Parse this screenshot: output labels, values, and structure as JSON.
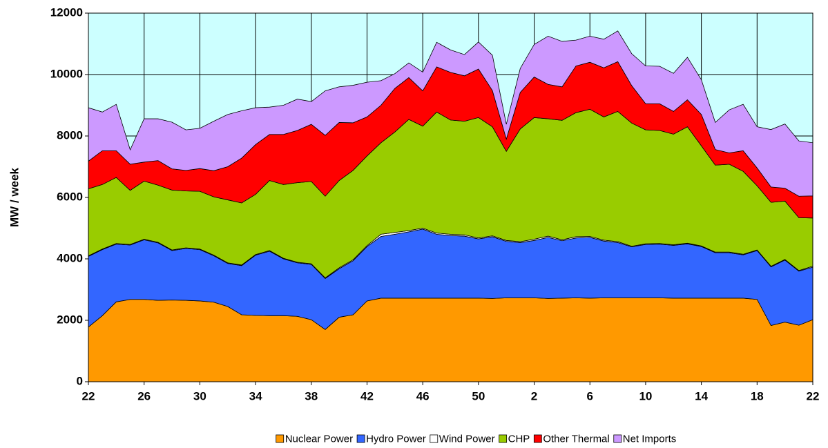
{
  "chart_data": {
    "type": "stacked_area",
    "y_label": "MW / week",
    "categories": [
      "22",
      null,
      null,
      null,
      "26",
      null,
      null,
      null,
      "30",
      null,
      null,
      null,
      "34",
      null,
      null,
      null,
      "38",
      null,
      null,
      null,
      "42",
      null,
      null,
      null,
      "46",
      null,
      null,
      null,
      "50",
      null,
      null,
      null,
      "2",
      null,
      null,
      null,
      "6",
      null,
      null,
      null,
      "10",
      null,
      null,
      null,
      "14",
      null,
      null,
      null,
      "18",
      null,
      null,
      null,
      "22"
    ],
    "series": [
      {
        "name": "Nuclear Power",
        "color": "#ff9900",
        "values": [
          1780,
          2150,
          2600,
          2680,
          2680,
          2650,
          2660,
          2650,
          2630,
          2590,
          2450,
          2180,
          2160,
          2150,
          2150,
          2130,
          2020,
          1700,
          2100,
          2180,
          2630,
          2720,
          2720,
          2720,
          2720,
          2720,
          2720,
          2720,
          2720,
          2710,
          2730,
          2730,
          2730,
          2710,
          2720,
          2730,
          2720,
          2730,
          2730,
          2730,
          2730,
          2730,
          2720,
          2720,
          2720,
          2720,
          2720,
          2720,
          2680,
          1830,
          1940,
          1840,
          2020
        ]
      },
      {
        "name": "Hydro Power",
        "color": "#3366ff",
        "values": [
          2300,
          2150,
          1880,
          1770,
          1940,
          1870,
          1610,
          1690,
          1670,
          1510,
          1400,
          1600,
          1960,
          2100,
          1850,
          1740,
          1800,
          1660,
          1580,
          1760,
          1770,
          2010,
          2080,
          2160,
          2250,
          2080,
          2040,
          2020,
          1930,
          2010,
          1840,
          1800,
          1870,
          1990,
          1870,
          1950,
          1980,
          1850,
          1800,
          1660,
          1740,
          1750,
          1720,
          1770,
          1680,
          1480,
          1480,
          1410,
          1590,
          1910,
          2020,
          1760,
          1710
        ]
      },
      {
        "name": "Wind Power",
        "color": "#ffffff",
        "values": [
          20,
          20,
          20,
          20,
          20,
          20,
          20,
          20,
          20,
          20,
          20,
          20,
          20,
          20,
          20,
          20,
          20,
          20,
          30,
          30,
          30,
          70,
          60,
          40,
          30,
          40,
          40,
          40,
          30,
          30,
          30,
          30,
          40,
          40,
          30,
          40,
          30,
          30,
          30,
          20,
          20,
          20,
          20,
          20,
          20,
          20,
          20,
          20,
          20,
          20,
          20,
          20,
          30
        ]
      },
      {
        "name": "CHP",
        "color": "#99cc00",
        "values": [
          2180,
          2100,
          2150,
          1760,
          1890,
          1860,
          1950,
          1850,
          1880,
          1900,
          2050,
          2020,
          1960,
          2280,
          2400,
          2590,
          2680,
          2660,
          2840,
          2910,
          2920,
          2980,
          3270,
          3620,
          3320,
          3940,
          3720,
          3700,
          3920,
          3550,
          2900,
          3670,
          3960,
          3820,
          3890,
          4040,
          4140,
          4010,
          4240,
          4010,
          3710,
          3680,
          3600,
          3790,
          3260,
          2830,
          2860,
          2700,
          2090,
          2080,
          1900,
          1720,
          1570
        ]
      },
      {
        "name": "Other Thermal",
        "color": "#ff0000",
        "values": [
          900,
          1100,
          870,
          850,
          620,
          800,
          690,
          670,
          740,
          850,
          1080,
          1460,
          1620,
          1500,
          1630,
          1700,
          1860,
          1980,
          1890,
          1550,
          1270,
          1220,
          1420,
          1360,
          1150,
          1470,
          1550,
          1480,
          1580,
          1180,
          400,
          1190,
          1320,
          1120,
          1090,
          1520,
          1530,
          1600,
          1620,
          1220,
          850,
          870,
          740,
          880,
          1020,
          510,
          370,
          670,
          580,
          500,
          420,
          700,
          720
        ]
      },
      {
        "name": "Net Imports",
        "color": "#cc99ff",
        "values": [
          1740,
          1260,
          1510,
          470,
          1410,
          1360,
          1520,
          1320,
          1310,
          1610,
          1700,
          1540,
          1200,
          890,
          950,
          1020,
          740,
          1450,
          1160,
          1220,
          1130,
          800,
          480,
          480,
          610,
          800,
          730,
          690,
          880,
          1150,
          480,
          780,
          1060,
          1570,
          1480,
          840,
          850,
          930,
          1000,
          1040,
          1230,
          1220,
          1240,
          1380,
          1130,
          880,
          1400,
          1510,
          1340,
          1870,
          2090,
          1800,
          1730
        ]
      }
    ],
    "ylim": [
      0,
      12000
    ],
    "yticks": [
      0,
      2000,
      4000,
      6000,
      8000,
      10000,
      12000
    ],
    "grid": true,
    "plot_background": "#ccffff",
    "legend": "bottom"
  }
}
